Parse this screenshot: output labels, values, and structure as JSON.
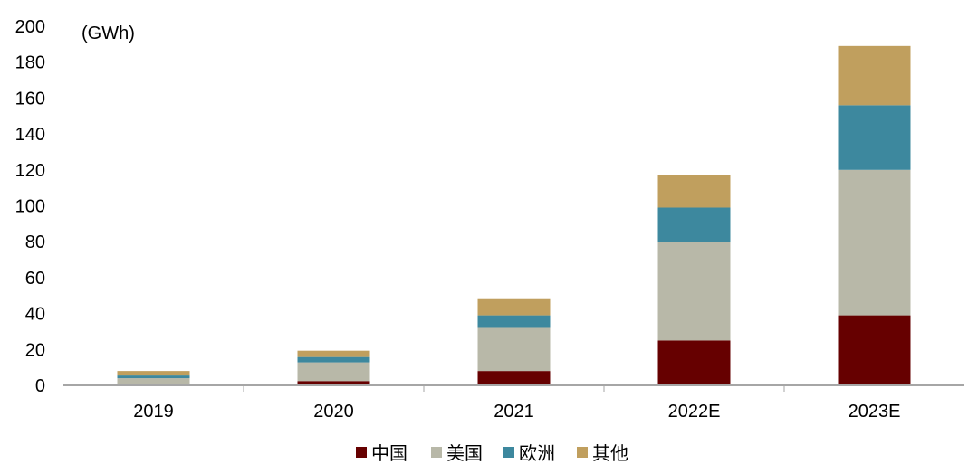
{
  "chart_data": {
    "type": "bar",
    "stacked": true,
    "unit_label": "(GWh)",
    "categories": [
      "2019",
      "2020",
      "2021",
      "2022E",
      "2023E"
    ],
    "series": [
      {
        "name": "中国",
        "color": "#660000",
        "values": [
          1,
          2.4,
          8,
          25,
          39
        ]
      },
      {
        "name": "美国",
        "color": "#B8B8A8",
        "values": [
          3,
          10.4,
          24,
          55,
          81
        ]
      },
      {
        "name": "欧洲",
        "color": "#3D889E",
        "values": [
          1.5,
          3,
          7,
          19,
          36
        ]
      },
      {
        "name": "其他",
        "color": "#C09F5E",
        "values": [
          2.5,
          3.5,
          9.5,
          18,
          33
        ]
      }
    ],
    "ylim": [
      0,
      200
    ],
    "yticks": [
      "0",
      "20",
      "40",
      "60",
      "80",
      "100",
      "120",
      "140",
      "160",
      "180",
      "200"
    ],
    "grid": false,
    "legend_position": "bottom"
  }
}
